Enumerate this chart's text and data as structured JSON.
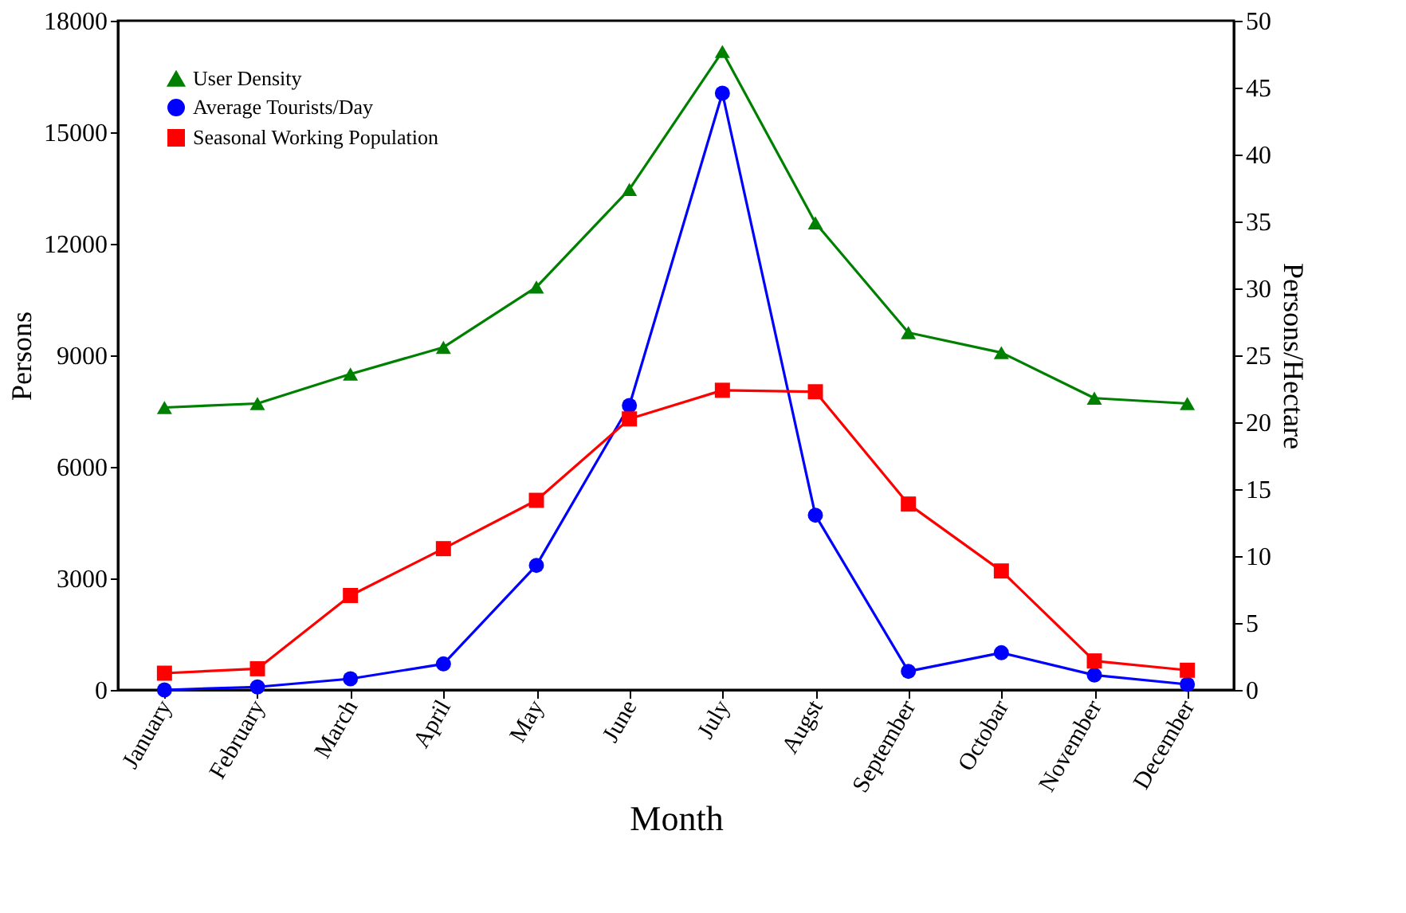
{
  "chart_data": {
    "type": "line",
    "xlabel": "Month",
    "ylabel": "Persons",
    "y2label": "Persons/Hectare",
    "categories": [
      "January",
      "February",
      "March",
      "April",
      "May",
      "June",
      "July",
      "Augst",
      "September",
      "Octobar",
      "November",
      "December"
    ],
    "series": [
      {
        "name": "User Density",
        "color": "#008000",
        "marker": "triangle",
        "axis": "y2",
        "values": [
          21.1,
          21.4,
          23.6,
          25.6,
          30.1,
          37.4,
          47.7,
          34.9,
          26.7,
          25.2,
          21.8,
          21.4
        ]
      },
      {
        "name": "Average Tourists/Day",
        "color": "#0000ff",
        "marker": "circle",
        "values": [
          0,
          80,
          300,
          700,
          3350,
          7650,
          16050,
          4700,
          500,
          1000,
          400,
          150
        ]
      },
      {
        "name": "Seasonal Working Population",
        "color": "#ff0000",
        "marker": "square",
        "values": [
          450,
          570,
          2540,
          3800,
          5100,
          7290,
          8060,
          8020,
          5000,
          3200,
          780,
          530
        ]
      }
    ],
    "ylim": [
      0,
      18000
    ],
    "yticks": [
      0,
      3000,
      6000,
      9000,
      12000,
      15000,
      18000
    ],
    "y2lim": [
      0,
      50
    ],
    "y2ticks": [
      0,
      5,
      10,
      15,
      20,
      25,
      30,
      35,
      40,
      45,
      50
    ],
    "legend": "top left",
    "grid": false,
    "line_style": "solid"
  }
}
